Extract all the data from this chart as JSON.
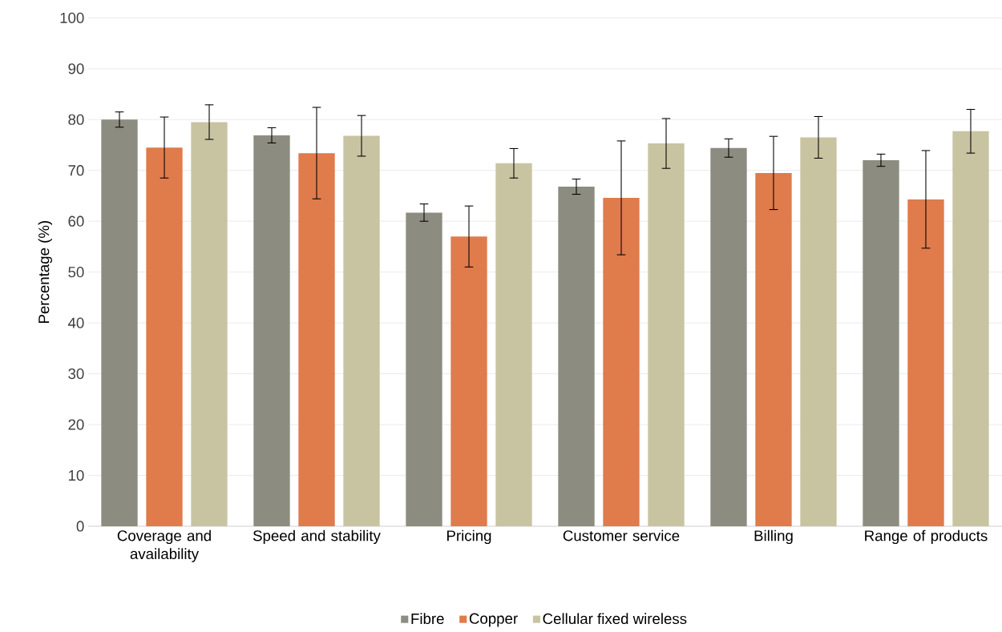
{
  "chart_data": {
    "type": "bar",
    "ylabel": "Percentage (%)",
    "categories": [
      "Coverage and availability",
      "Speed and stability",
      "Pricing",
      "Customer service",
      "Billing",
      "Range of products"
    ],
    "series": [
      {
        "name": "Fibre",
        "color": "#8c8c80",
        "values": [
          80.0,
          76.9,
          61.7,
          66.8,
          74.4,
          72.0
        ],
        "errors": [
          1.5,
          1.5,
          1.7,
          1.5,
          1.8,
          1.2
        ]
      },
      {
        "name": "Copper",
        "color": "#e07b4c",
        "values": [
          74.5,
          73.4,
          57.0,
          64.6,
          69.5,
          64.3
        ],
        "errors": [
          6.0,
          9.0,
          6.0,
          11.2,
          7.2,
          9.6
        ]
      },
      {
        "name": "Cellular fixed wireless",
        "color": "#c8c4a2",
        "values": [
          79.5,
          76.8,
          71.4,
          75.3,
          76.5,
          77.7
        ],
        "errors": [
          3.4,
          4.0,
          2.9,
          4.9,
          4.1,
          4.3
        ]
      }
    ],
    "ylim": [
      0,
      100
    ],
    "yticks": [
      0,
      10,
      20,
      30,
      40,
      50,
      60,
      70,
      80,
      90,
      100
    ],
    "grid": "y",
    "legend": "bottom"
  }
}
